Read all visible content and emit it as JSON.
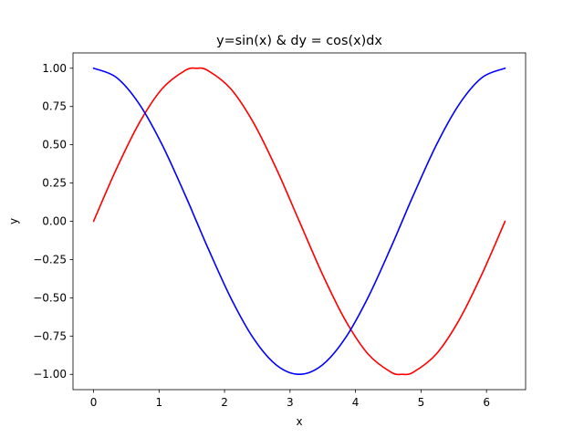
{
  "chart_data": {
    "type": "line",
    "title": "y=sin(x) & dy = cos(x)dx",
    "xlabel": "x",
    "ylabel": "y",
    "xlim": [
      -0.314,
      6.597
    ],
    "ylim": [
      -1.1,
      1.1
    ],
    "xticks": [
      0,
      1,
      2,
      3,
      4,
      5,
      6
    ],
    "xtick_labels": [
      "0",
      "1",
      "2",
      "3",
      "4",
      "5",
      "6"
    ],
    "yticks": [
      -1.0,
      -0.75,
      -0.5,
      -0.25,
      0.0,
      0.25,
      0.5,
      0.75,
      1.0
    ],
    "ytick_labels": [
      "−1.00",
      "−0.75",
      "−0.50",
      "−0.25",
      "0.00",
      "0.25",
      "0.50",
      "0.75",
      "1.00"
    ],
    "grid": false,
    "series": [
      {
        "color": "#ff0000",
        "x": [
          0,
          0.3491,
          0.6981,
          1.0472,
          1.3963,
          1.5708,
          1.7453,
          2.0944,
          2.4435,
          2.7925,
          3.1416,
          3.4907,
          3.8397,
          4.1888,
          4.5379,
          4.7124,
          4.8869,
          5.236,
          5.5851,
          5.9341,
          6.2832
        ],
        "y": [
          0,
          0.342,
          0.6428,
          0.866,
          0.9848,
          1.0,
          0.9848,
          0.866,
          0.6428,
          0.342,
          0,
          -0.342,
          -0.6428,
          -0.866,
          -0.9848,
          -1.0,
          -0.9848,
          -0.866,
          -0.6428,
          -0.342,
          0
        ]
      },
      {
        "color": "#0000ff",
        "x": [
          0,
          0.3491,
          0.6981,
          1.0472,
          1.3963,
          1.5708,
          1.7453,
          2.0944,
          2.4435,
          2.7925,
          3.1416,
          3.4907,
          3.8397,
          4.1888,
          4.5379,
          4.7124,
          4.8869,
          5.236,
          5.5851,
          5.9341,
          6.2832
        ],
        "y": [
          1.0,
          0.9397,
          0.766,
          0.5,
          0.1736,
          0,
          -0.1736,
          -0.5,
          -0.766,
          -0.9397,
          -1.0,
          -0.9397,
          -0.766,
          -0.5,
          -0.1736,
          0,
          0.1736,
          0.5,
          0.766,
          0.9397,
          1.0
        ]
      }
    ]
  }
}
